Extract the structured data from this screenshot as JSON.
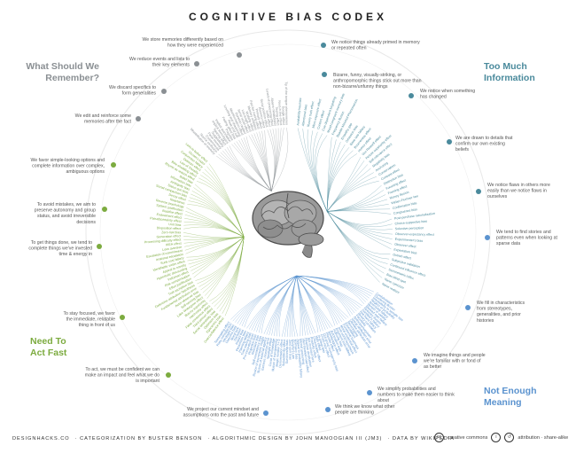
{
  "title": "COGNITIVE BIAS CODEX",
  "quadrants": [
    {
      "id": "remember",
      "title": "What Should We Remember?",
      "color": "#8a8f93"
    },
    {
      "id": "information",
      "title": "Too Much Information",
      "color": "#4a8a9c"
    },
    {
      "id": "meaning",
      "title": "Not Enough Meaning",
      "color": "#5b93cf"
    },
    {
      "id": "act",
      "title": "Need To Act Fast",
      "color": "#7cab3f"
    }
  ],
  "notes": [
    {
      "q": "remember",
      "text": "We store memories differently based on how they were experienced"
    },
    {
      "q": "remember",
      "text": "We reduce events and lists to their key elements"
    },
    {
      "q": "remember",
      "text": "We discard specifics to form generalities"
    },
    {
      "q": "remember",
      "text": "We edit and reinforce some memories after the fact"
    },
    {
      "q": "information",
      "text": "We notice things already primed in memory or repeated often"
    },
    {
      "q": "information",
      "text": "Bizarre, funny, visually-striking, or anthropomorphic things stick out more than non-bizarre/unfunny things"
    },
    {
      "q": "information",
      "text": "We notice when something has changed"
    },
    {
      "q": "information",
      "text": "We are drawn to details that confirm our own existing beliefs"
    },
    {
      "q": "information",
      "text": "We notice flaws in others more easily than we notice flaws in ourselves"
    },
    {
      "q": "meaning",
      "text": "We tend to find stories and patterns even when looking at sparse data"
    },
    {
      "q": "meaning",
      "text": "We fill in characteristics from stereotypes, generalities, and prior histories"
    },
    {
      "q": "meaning",
      "text": "We imagine things and people we're familiar with or fond of as better"
    },
    {
      "q": "meaning",
      "text": "We simplify probabilities and numbers to make them easier to think about"
    },
    {
      "q": "meaning",
      "text": "We think we know what other people are thinking"
    },
    {
      "q": "meaning",
      "text": "We project our current mindset and assumptions onto the past and future"
    },
    {
      "q": "act",
      "text": "We favor simple-looking options and complete information over complex, ambiguous options"
    },
    {
      "q": "act",
      "text": "To avoid mistakes, we aim to preserve autonomy and group status, and avoid irreversible decisions"
    },
    {
      "q": "act",
      "text": "To get things done, we tend to complete things we've invested time & energy in"
    },
    {
      "q": "act",
      "text": "To stay focused, we favor the immediate, relatable thing in front of us"
    },
    {
      "q": "act",
      "text": "To act, we must be confident we can make an impact and feel what we do is important"
    }
  ],
  "leaves": {
    "information": [
      "Availability heuristic",
      "Attentional bias",
      "Illusory truth effect",
      "Mere exposure effect",
      "Context effect",
      "Cue-dependent forgetting",
      "Mood-congruent memory bias",
      "Frequency illusion",
      "Baader-Meinhof Phenomenon",
      "Empathy gap",
      "Omission bias",
      "Base rate fallacy",
      "Bizarreness effect",
      "Humor effect",
      "Von Restorff effect",
      "Picture superiority effect",
      "Self-relevance effect",
      "Negativity bias",
      "Anchoring",
      "Conservatism",
      "Contrast effect",
      "Distinction bias",
      "Focusing effect",
      "Framing effect",
      "Money illusion",
      "Weber-Fechner law",
      "Confirmation bias",
      "Congruence bias",
      "Post-purchase rationalization",
      "Choice-supportive bias",
      "Selective perception",
      "Observer-expectancy effect",
      "Experimenter's bias",
      "Observer effect",
      "Expectation bias",
      "Ostrich effect",
      "Subjective validation",
      "Continued influence effect",
      "Semmelweis reflex",
      "Bias blind spot",
      "Naive cynicism",
      "Naive realism"
    ],
    "meaning": [
      "Confabulation",
      "Clustering illusion",
      "Insensitivity to sample size",
      "Neglect of probability",
      "Anecdotal fallacy",
      "Illusion of validity",
      "Masked man fallacy",
      "Recency illusion",
      "Gambler's fallacy",
      "Hot-hand fallacy",
      "Illusory correlation",
      "Pareidolia",
      "Anthropomorphism",
      "Group attribution error",
      "Ultimate attribution error",
      "Stereotyping",
      "Essentialism",
      "Functional fixedness",
      "Moral credential effect",
      "Just-world hypothesis",
      "Argument from fallacy",
      "Authority bias",
      "Automation bias",
      "Bandwagon effect",
      "Placebo effect",
      "Out-group homogeneity bias",
      "Cross-race effect",
      "In-group bias",
      "Halo effect",
      "Cheerleader effect",
      "Positivity effect",
      "Not invented here",
      "Reactive devaluation",
      "Well-traveled road effect",
      "Mental accounting",
      "Appeal to probability fallacy",
      "Normalcy bias",
      "Murphy's Law",
      "Zero sum bias",
      "Survivorship bias",
      "Subadditivity effect",
      "Denomination effect",
      "Magic number 7+-2",
      "Illusion of transparency",
      "Curse of knowledge",
      "Spotlight effect",
      "Extrinsic incentive error",
      "Illusion of external agency",
      "Illusion of asymmetric insight",
      "Self-consistency bias",
      "Resistant bias",
      "Projection bias",
      "Pro-innovation bias",
      "Time-saving bias",
      "Planning fallacy",
      "Pessimism bias",
      "Impact bias",
      "Declinism",
      "Moral luck",
      "Outcome bias",
      "Hindsight bias",
      "Rosy retrospection",
      "Telescoping effect"
    ],
    "act": [
      "Overconfidence effect",
      "Egocentric bias",
      "Optimism bias",
      "Social desirability bias",
      "Third-person effect",
      "False consensus effect",
      "Hard-easy effect",
      "Illusory superiority",
      "Lake Wobegone effect",
      "Self-serving bias",
      "Actor-observer bias",
      "Fundamental attribution error",
      "Defensive attribution hypothesis",
      "Trait ascription bias",
      "Effort justification",
      "Risk compensation",
      "Peltzman effect",
      "Hyperbolic discounting",
      "Appeal to novelty",
      "Identifiable victim effect",
      "Sunk cost fallacy",
      "Irrational escalation",
      "Escalation of commitment",
      "Loss aversion",
      "IKEA effect",
      "Processing difficulty effect",
      "Generation effect",
      "Zero-risk bias",
      "Disposition effect",
      "Unit bias",
      "Pseudocertainty effect",
      "Endowment effect",
      "Backfire effect",
      "System justification",
      "Reverse psychology",
      "Reactance",
      "Decoy effect",
      "Social comparison bias",
      "Status quo bias",
      "Ambiguity bias",
      "Information bias",
      "Belief bias",
      "Rhyme as reason effect",
      "Bike-shedding effect",
      "Law of Triviality",
      "Delmore effect",
      "Conjunction fallacy",
      "Occam's razor",
      "Less-is-better effect"
    ],
    "remember": [
      "Misattribution of memory",
      "Source confusion",
      "Cryptomnesia",
      "False memory",
      "Suggestibility",
      "Spacing effect",
      "Implicit stereotypes",
      "Implicit association",
      "Prejudice",
      "Fading affect bias",
      "Peak-end rule",
      "Leveling and sharpening",
      "Misinformation effect",
      "Duration neglect",
      "Serial recall effect",
      "List-length effect",
      "Modality effect",
      "Memory inhibition",
      "Part-list cueing effect",
      "Primacy effect",
      "Recency effect",
      "Serial position effect",
      "Suffix effect",
      "Levels of processing effect",
      "Absent-mindedness",
      "Testing effect",
      "Next-in-line effect",
      "Google effect",
      "Tip of the tongue phenomenon"
    ]
  },
  "footer": [
    "DESIGNHACKS.CO",
    "CATEGORIZATION BY BUSTER BENSON",
    "ALGORITHMIC DESIGN BY JOHN MANOOGIAN III (JM3)",
    "DATA BY WIKIPEDIA"
  ],
  "license": {
    "brand": "creative commons",
    "terms": "attribution · share-alike"
  }
}
